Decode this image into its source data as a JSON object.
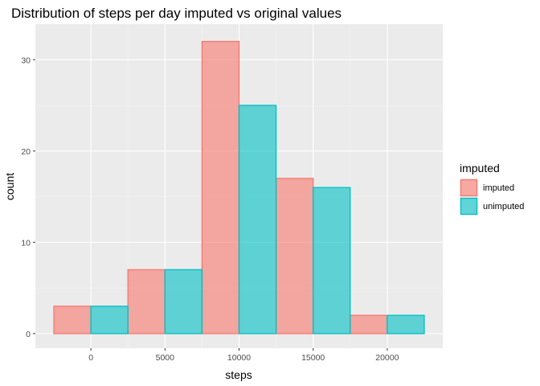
{
  "chart_data": {
    "type": "bar",
    "title": "Distribution of steps per day imputed vs original values",
    "xlabel": "steps",
    "ylabel": "count",
    "xlim": [
      -2500,
      22500
    ],
    "ylim": [
      0,
      33
    ],
    "x_ticks": [
      0,
      5000,
      10000,
      15000,
      20000
    ],
    "x_tick_labels": [
      "0",
      "5000",
      "10000",
      "15000",
      "20000"
    ],
    "y_ticks": [
      0,
      10,
      20,
      30
    ],
    "y_tick_labels": [
      "0",
      "10",
      "20",
      "30"
    ],
    "bin_width": 5000,
    "legend": {
      "title": "imputed",
      "position": "right"
    },
    "series": [
      {
        "name": "imputed",
        "fill": "#F8766D",
        "stroke": "#F8766D",
        "bars": [
          {
            "x_start": -2500,
            "x_end": 0,
            "value": 3
          },
          {
            "x_start": 2500,
            "x_end": 5000,
            "value": 7
          },
          {
            "x_start": 7500,
            "x_end": 10000,
            "value": 32
          },
          {
            "x_start": 12500,
            "x_end": 15000,
            "value": 17
          },
          {
            "x_start": 17500,
            "x_end": 20000,
            "value": 2
          }
        ]
      },
      {
        "name": "unimputed",
        "fill": "#00BFC4",
        "stroke": "#00BFC4",
        "bars": [
          {
            "x_start": 0,
            "x_end": 2500,
            "value": 3
          },
          {
            "x_start": 5000,
            "x_end": 7500,
            "value": 7
          },
          {
            "x_start": 10000,
            "x_end": 12500,
            "value": 25
          },
          {
            "x_start": 15000,
            "x_end": 17500,
            "value": 16
          },
          {
            "x_start": 20000,
            "x_end": 22500,
            "value": 2
          }
        ]
      }
    ]
  }
}
